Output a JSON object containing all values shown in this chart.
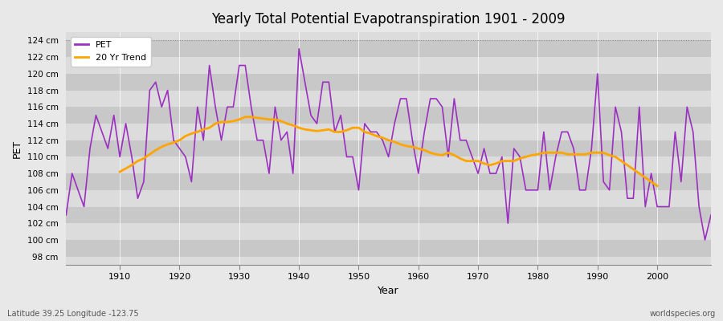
{
  "title": "Yearly Total Potential Evapotranspiration 1901 - 2009",
  "xlabel": "Year",
  "ylabel": "PET",
  "subtitle_left": "Latitude 39.25 Longitude -123.75",
  "subtitle_right": "worldspecies.org",
  "pet_color": "#9B30C0",
  "trend_color": "#FFA500",
  "bg_color": "#E8E8E8",
  "plot_bg_light": "#DCDCDC",
  "plot_bg_dark": "#C8C8C8",
  "ylim": [
    97,
    125
  ],
  "xlim": [
    1901,
    2009
  ],
  "yticks": [
    98,
    100,
    102,
    104,
    106,
    108,
    110,
    112,
    114,
    116,
    118,
    120,
    122,
    124
  ],
  "ytick_labels": [
    "98 cm",
    "100 cm",
    "102 cm",
    "104 cm",
    "106 cm",
    "108 cm",
    "110 cm",
    "112 cm",
    "114 cm",
    "116 cm",
    "118 cm",
    "120 cm",
    "122 cm",
    "124 cm"
  ],
  "xticks": [
    1910,
    1920,
    1930,
    1940,
    1950,
    1960,
    1970,
    1980,
    1990,
    2000
  ],
  "pet_years": [
    1901,
    1902,
    1903,
    1904,
    1905,
    1906,
    1907,
    1908,
    1909,
    1910,
    1911,
    1912,
    1913,
    1914,
    1915,
    1916,
    1917,
    1918,
    1919,
    1920,
    1921,
    1922,
    1923,
    1924,
    1925,
    1926,
    1927,
    1928,
    1929,
    1930,
    1931,
    1932,
    1933,
    1934,
    1935,
    1936,
    1937,
    1938,
    1939,
    1940,
    1941,
    1942,
    1943,
    1944,
    1945,
    1946,
    1947,
    1948,
    1949,
    1950,
    1951,
    1952,
    1953,
    1954,
    1955,
    1956,
    1957,
    1958,
    1959,
    1960,
    1961,
    1962,
    1963,
    1964,
    1965,
    1966,
    1967,
    1968,
    1969,
    1970,
    1971,
    1972,
    1973,
    1974,
    1975,
    1976,
    1977,
    1978,
    1979,
    1980,
    1981,
    1982,
    1983,
    1984,
    1985,
    1986,
    1987,
    1988,
    1989,
    1990,
    1991,
    1992,
    1993,
    1994,
    1995,
    1996,
    1997,
    1998,
    1999,
    2000,
    2001,
    2002,
    2003,
    2004,
    2005,
    2006,
    2007,
    2008,
    2009
  ],
  "pet_values": [
    103,
    108,
    106,
    104,
    111,
    115,
    113,
    111,
    115,
    110,
    114,
    110,
    105,
    107,
    118,
    119,
    116,
    118,
    112,
    111,
    110,
    107,
    116,
    112,
    121,
    116,
    112,
    116,
    116,
    121,
    121,
    116,
    112,
    112,
    108,
    116,
    112,
    113,
    108,
    123,
    119,
    115,
    114,
    119,
    119,
    113,
    115,
    110,
    110,
    106,
    114,
    113,
    113,
    112,
    110,
    114,
    117,
    117,
    112,
    108,
    113,
    117,
    117,
    116,
    110,
    117,
    112,
    112,
    110,
    108,
    111,
    108,
    108,
    110,
    102,
    111,
    110,
    106,
    106,
    106,
    113,
    106,
    110,
    113,
    113,
    111,
    106,
    106,
    111,
    120,
    107,
    106,
    116,
    113,
    105,
    105,
    116,
    104,
    108,
    104,
    104,
    104,
    113,
    107,
    116,
    113,
    104,
    100,
    103
  ],
  "trend_years": [
    1901,
    1902,
    1903,
    1904,
    1905,
    1906,
    1907,
    1908,
    1909,
    1910,
    1911,
    1912,
    1913,
    1914,
    1915,
    1916,
    1917,
    1918,
    1919,
    1920,
    1921,
    1922,
    1923,
    1924,
    1925,
    1926,
    1927,
    1928,
    1929,
    1930,
    1931,
    1932,
    1933,
    1934,
    1935,
    1936,
    1937,
    1938,
    1939,
    1940,
    1941,
    1942,
    1943,
    1944,
    1945,
    1946,
    1947,
    1948,
    1949,
    1950,
    1951,
    1952,
    1953,
    1954,
    1955,
    1956,
    1957,
    1958,
    1959,
    1960,
    1961,
    1962,
    1963,
    1964,
    1965,
    1966,
    1967,
    1968,
    1969,
    1970,
    1971,
    1972,
    1973,
    1974,
    1975,
    1976,
    1977,
    1978,
    1979,
    1980,
    1981,
    1982,
    1983,
    1984,
    1985,
    1986,
    1987,
    1988,
    1989,
    1990,
    1991,
    1992,
    1993,
    1994,
    1995,
    1996,
    1997,
    1998,
    1999,
    2000,
    2001,
    2002,
    2003,
    2004,
    2005,
    2006,
    2007,
    2008,
    2009
  ],
  "trend_values": [
    null,
    null,
    null,
    null,
    null,
    null,
    null,
    null,
    null,
    108.2,
    108.6,
    109.0,
    109.5,
    109.8,
    110.3,
    110.8,
    111.2,
    111.5,
    111.7,
    112.0,
    112.5,
    112.8,
    113.0,
    113.3,
    113.5,
    114.0,
    114.2,
    114.2,
    114.3,
    114.5,
    114.8,
    114.8,
    114.7,
    114.6,
    114.5,
    114.5,
    114.3,
    114.0,
    113.8,
    113.5,
    113.3,
    113.2,
    113.1,
    113.2,
    113.3,
    113.0,
    113.0,
    113.2,
    113.5,
    113.5,
    113.0,
    112.8,
    112.5,
    112.3,
    112.0,
    111.8,
    111.5,
    111.3,
    111.2,
    111.0,
    110.8,
    110.5,
    110.3,
    110.2,
    110.5,
    110.2,
    109.8,
    109.5,
    109.5,
    109.5,
    109.2,
    109.0,
    109.2,
    109.5,
    109.5,
    109.5,
    109.8,
    110.0,
    110.2,
    110.3,
    110.5,
    110.5,
    110.5,
    110.5,
    110.3,
    110.3,
    110.3,
    110.3,
    110.5,
    110.5,
    110.5,
    110.2,
    110.0,
    109.5,
    109.0,
    108.5,
    108.0,
    107.5,
    107.0,
    106.5,
    null,
    null,
    null,
    null,
    null,
    null,
    null,
    null,
    null
  ]
}
